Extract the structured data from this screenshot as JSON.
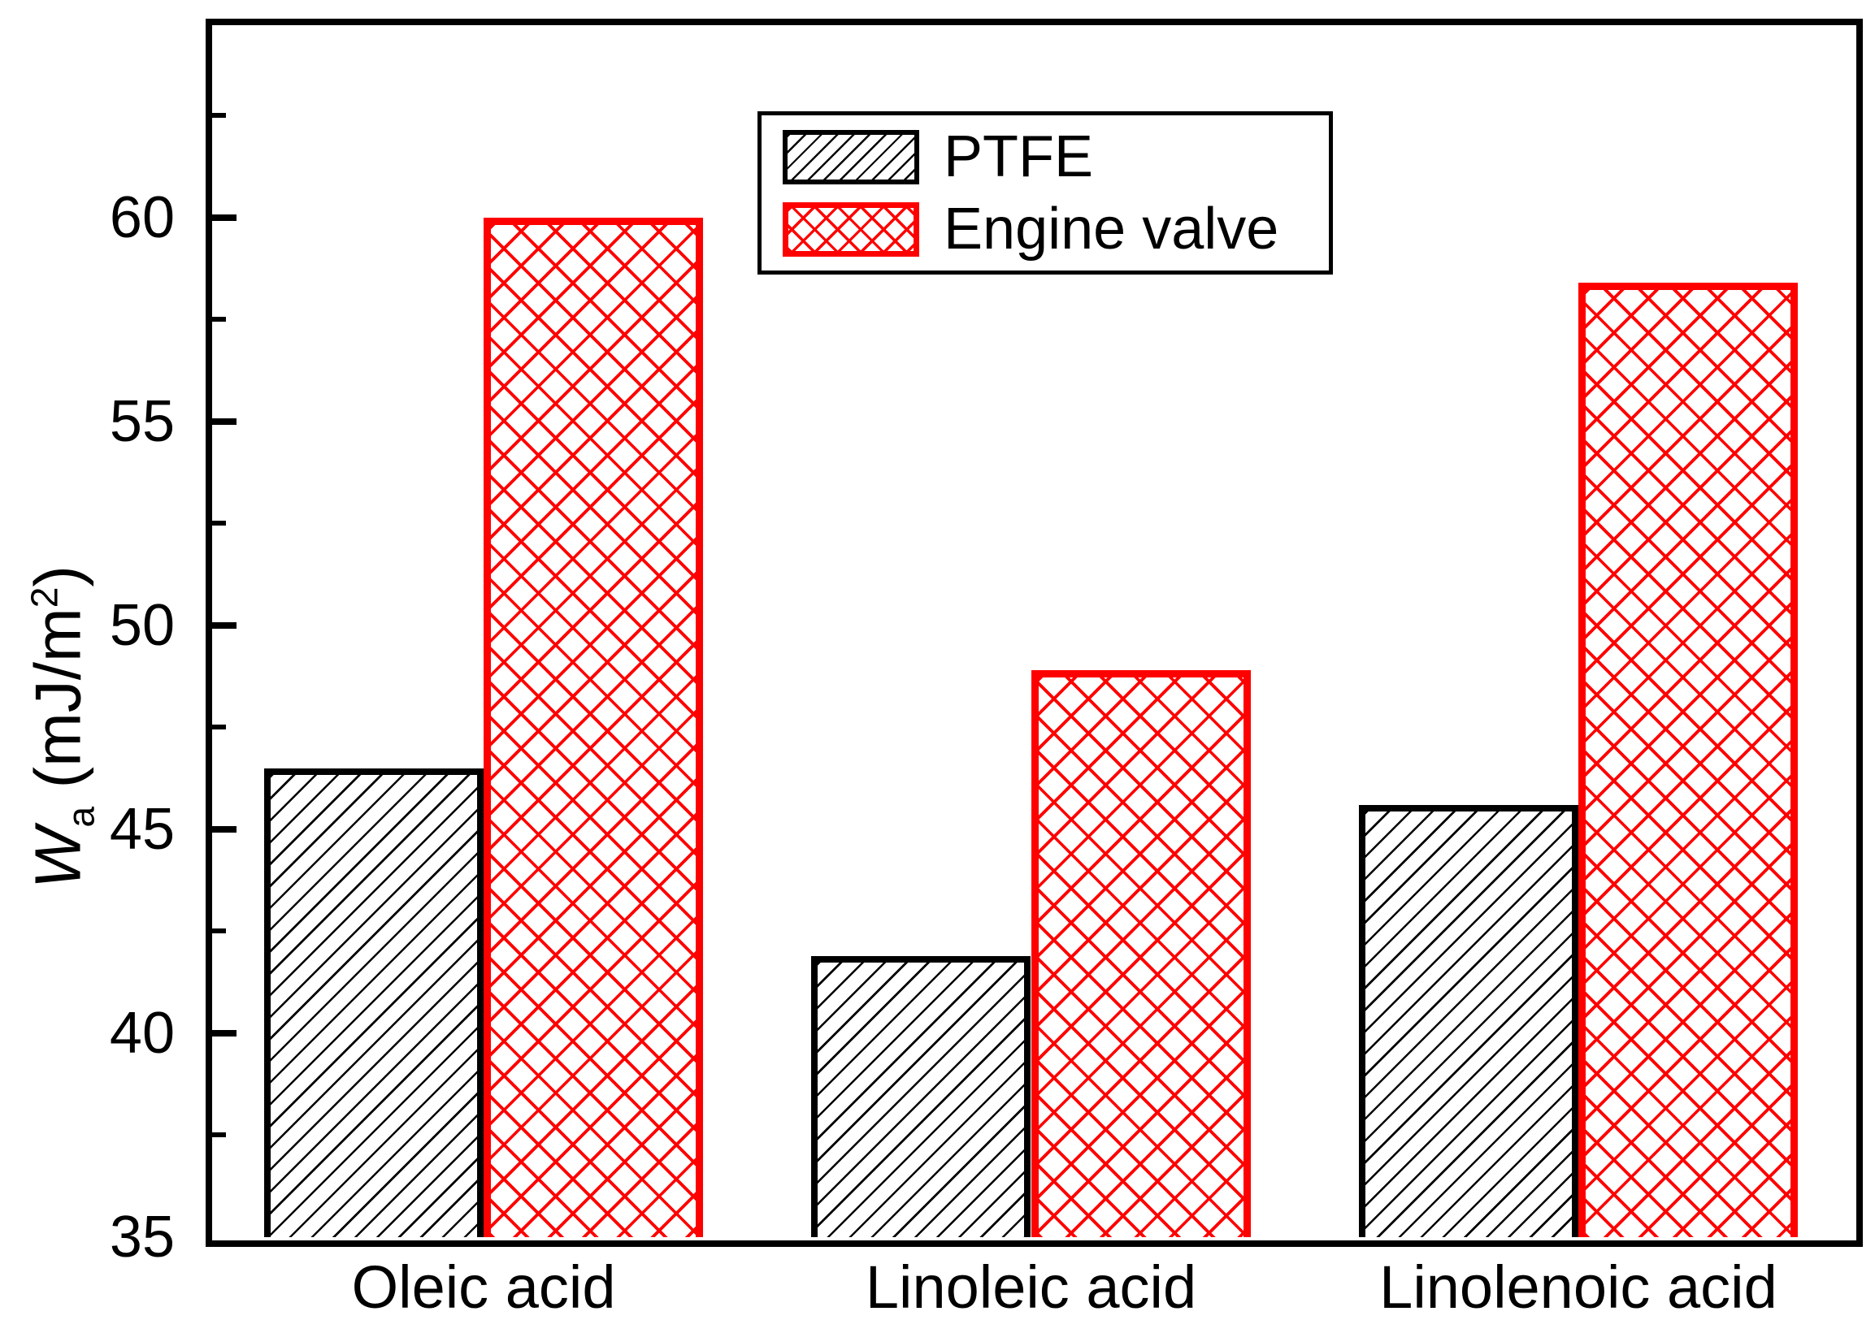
{
  "chart_data": {
    "type": "bar",
    "title": "",
    "categories": [
      "Oleic acid",
      "Linoleic acid",
      "Linolenoic acid"
    ],
    "series": [
      {
        "name": "PTFE",
        "color": "#000000",
        "hatch": "diagonal",
        "values": [
          46.5,
          41.9,
          45.6
        ]
      },
      {
        "name": "Engine valve",
        "color": "#ff0000",
        "hatch": "crosshatch",
        "values": [
          60.0,
          48.9,
          58.4
        ]
      }
    ],
    "xlabel": "",
    "ylabel": "Wa (mJ/m2)",
    "ylabel_parts": {
      "symbol": "W",
      "subscript": "a",
      "unit_open": " (mJ/m",
      "superscript": "2",
      "unit_close": ")"
    },
    "ylim": [
      35,
      64.8
    ],
    "yticks_major": [
      35,
      40,
      45,
      50,
      55,
      60
    ],
    "yticks_minor": [
      37.5,
      42.5,
      47.5,
      52.5,
      57.5,
      62.5
    ],
    "grid": false,
    "legend_position": "top-center",
    "axis_color": "#000000",
    "background": "#ffffff"
  }
}
